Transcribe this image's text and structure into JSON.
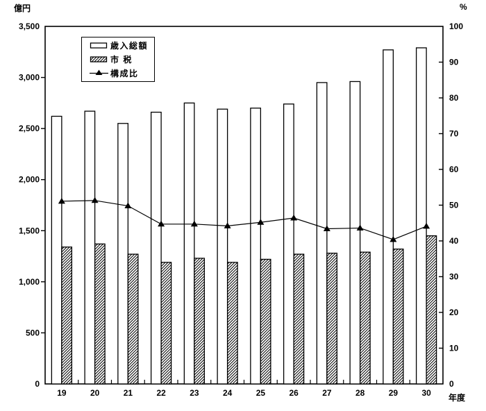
{
  "figure": {
    "left_unit": "億円",
    "right_unit": "%",
    "x_unit": "年度"
  },
  "legend": {
    "items": [
      {
        "label": "歳入総額",
        "swatch": "plain-bar"
      },
      {
        "label": "市 税",
        "swatch": "hatched-bar"
      },
      {
        "label": "構成比",
        "swatch": "triangle-line"
      }
    ]
  },
  "colors": {
    "ink": "#000000",
    "paper": "#ffffff"
  },
  "chart_data": {
    "type": "bar",
    "categories": [
      "19",
      "20",
      "21",
      "22",
      "23",
      "24",
      "25",
      "26",
      "27",
      "28",
      "29",
      "30"
    ],
    "series": [
      {
        "name": "歳入総額",
        "type": "bar",
        "style": "plain",
        "axis": "left",
        "values": [
          2620,
          2670,
          2550,
          2660,
          2750,
          2690,
          2700,
          2740,
          2950,
          2960,
          3270,
          3290
        ]
      },
      {
        "name": "市税",
        "type": "bar",
        "style": "hatched",
        "axis": "left",
        "values": [
          1340,
          1370,
          1270,
          1190,
          1230,
          1190,
          1220,
          1270,
          1280,
          1290,
          1320,
          1450
        ]
      },
      {
        "name": "構成比",
        "type": "line",
        "style": "triangle-marker",
        "axis": "right",
        "values": [
          51.1,
          51.3,
          49.8,
          44.7,
          44.7,
          44.2,
          45.2,
          46.4,
          43.4,
          43.6,
          40.4,
          44.1
        ]
      }
    ],
    "left_axis": {
      "label": "億円",
      "min": 0,
      "max": 3500,
      "step": 500
    },
    "right_axis": {
      "label": "%",
      "min": 0,
      "max": 100,
      "step": 10
    },
    "x_axis": {
      "label": "年度"
    },
    "grid": false,
    "legend_position": "upper-left-inside"
  }
}
